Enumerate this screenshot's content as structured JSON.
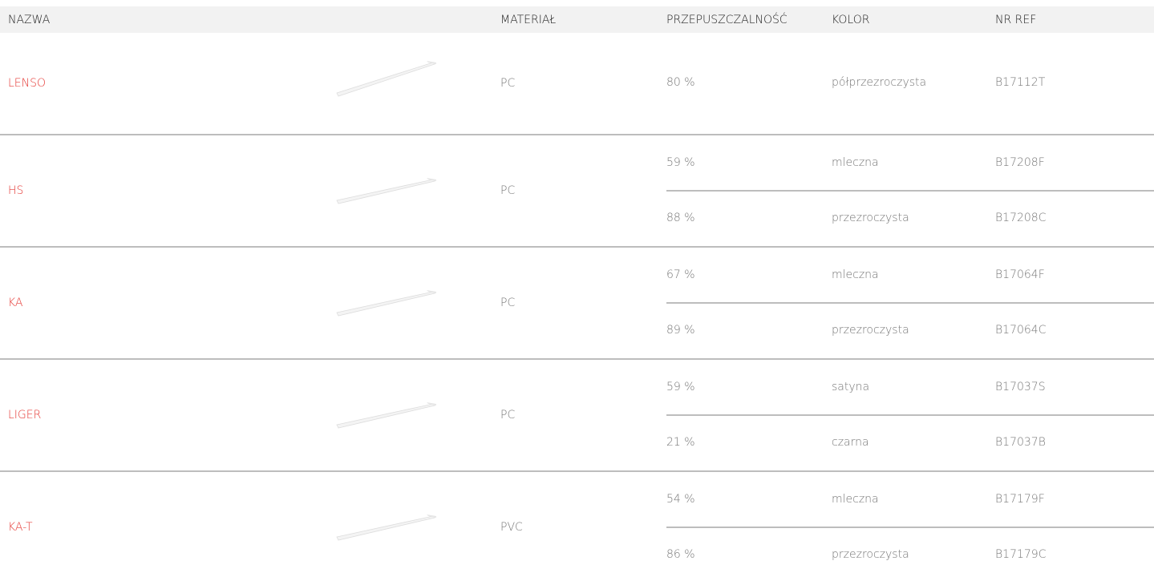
{
  "header": {
    "columns": [
      "NAZWA",
      "MATERIAŁ",
      "PRZEPUSZCZALNOŚĆ",
      "KOLOR",
      "NR REF"
    ]
  },
  "rows": [
    {
      "name": "LENSO",
      "material": "PC",
      "variants": [
        {
          "transmission": "80 %",
          "color": "półprzezroczysta",
          "ref": "B17112T"
        }
      ]
    },
    {
      "name": "HS",
      "material": "PC",
      "variants": [
        {
          "transmission": "59 %",
          "color": "mleczna",
          "ref": "B17208F"
        },
        {
          "transmission": "88 %",
          "color": "przezroczysta",
          "ref": "B17208C"
        }
      ]
    },
    {
      "name": "KA",
      "material": "PC",
      "variants": [
        {
          "transmission": "67 %",
          "color": "mleczna",
          "ref": "B17064F"
        },
        {
          "transmission": "89 %",
          "color": "przezroczysta",
          "ref": "B17064C"
        }
      ]
    },
    {
      "name": "LIGER",
      "material": "PC",
      "variants": [
        {
          "transmission": "59 %",
          "color": "satyna",
          "ref": "B17037S"
        },
        {
          "transmission": "21 %",
          "color": "czarna",
          "ref": "B17037B"
        }
      ]
    },
    {
      "name": "KA-T",
      "material": "PVC",
      "variants": [
        {
          "transmission": "54 %",
          "color": "mleczna",
          "ref": "B17179F"
        },
        {
          "transmission": "86 %",
          "color": "przezroczysta",
          "ref": "B17179C"
        }
      ]
    }
  ]
}
